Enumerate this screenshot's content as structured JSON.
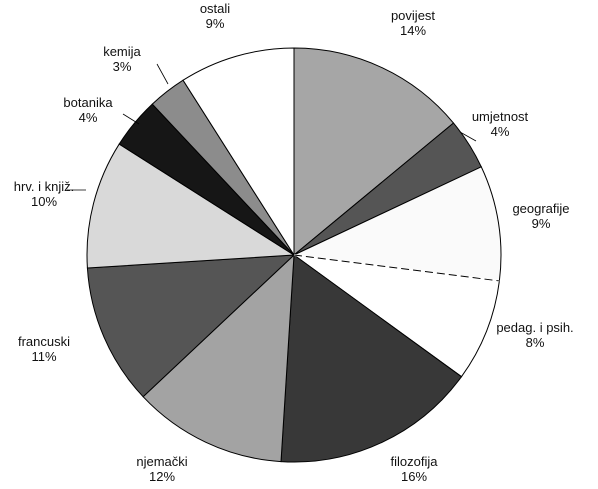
{
  "chart_data": {
    "type": "pie",
    "start_angle_deg": 0,
    "direction": "clockwise",
    "slices": [
      {
        "label": "povijest",
        "percent_label": "14%",
        "value": 14,
        "color": "#a6a6a6"
      },
      {
        "label": "umjetnost",
        "percent_label": "4%",
        "value": 4,
        "color": "#555555"
      },
      {
        "label": "geografije",
        "percent_label": "9%",
        "value": 9,
        "color": "#fafafa"
      },
      {
        "label": "pedag. i psih.",
        "percent_label": "8%",
        "value": 8,
        "color": "#ffffff"
      },
      {
        "label": "filozofija",
        "percent_label": "16%",
        "value": 16,
        "color": "#383838"
      },
      {
        "label": "njemački",
        "percent_label": "12%",
        "value": 12,
        "color": "#a3a3a3"
      },
      {
        "label": "francuski",
        "percent_label": "11%",
        "value": 11,
        "color": "#555555"
      },
      {
        "label": "hrv. i knjiž.",
        "percent_label": "10%",
        "value": 10,
        "color": "#d9d9d9"
      },
      {
        "label": "botanika",
        "percent_label": "4%",
        "value": 4,
        "color": "#161616"
      },
      {
        "label": "kemija",
        "percent_label": "3%",
        "value": 3,
        "color": "#8c8c8c"
      },
      {
        "label": "ostali",
        "percent_label": "9%",
        "value": 9,
        "color": "#ffffff"
      }
    ]
  }
}
